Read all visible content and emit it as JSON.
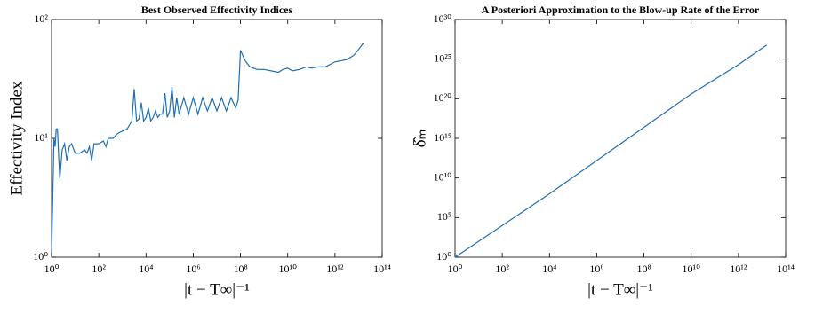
{
  "chart_data": [
    {
      "type": "line",
      "title": "Best Observed Effectivity Indices",
      "x_label": "|t − T∞|⁻¹",
      "y_label": "Effectivity Index",
      "log_x": true,
      "log_y": true,
      "xlim": [
        1,
        100000000000000.0
      ],
      "ylim": [
        1,
        100
      ],
      "xticks": [
        {
          "value": 1,
          "label": "10⁰"
        },
        {
          "value": 100,
          "label": "10²"
        },
        {
          "value": 10000,
          "label": "10⁴"
        },
        {
          "value": 1000000,
          "label": "10⁶"
        },
        {
          "value": 100000000,
          "label": "10⁸"
        },
        {
          "value": 10000000000,
          "label": "10¹⁰"
        },
        {
          "value": 1000000000000,
          "label": "10¹²"
        },
        {
          "value": 100000000000000,
          "label": "10¹⁴"
        }
      ],
      "yticks": [
        {
          "value": 1,
          "label": "10⁰"
        },
        {
          "value": 10,
          "label": "10¹"
        },
        {
          "value": 100,
          "label": "10²"
        }
      ],
      "series": [
        {
          "color": "#1f6fb4",
          "x": [
            1,
            1.12,
            1.26,
            1.41,
            1.58,
            1.78,
            2,
            2.24,
            2.82,
            3.55,
            4.47,
            5.62,
            7.08,
            10,
            15.8,
            25,
            31.6,
            40,
            50,
            63,
            100,
            158,
            200,
            251,
            398,
            631,
            1000,
            1585,
            2512,
            3162,
            3981,
            5012,
            6310,
            7943,
            10000,
            12589,
            15849,
            19953,
            25119,
            31623,
            39811,
            50119,
            63096,
            79433,
            100000,
            125893,
            158489,
            199526,
            251189,
            398107,
            630957,
            1000000,
            1580000,
            2510000,
            3980000,
            6310000,
            10000000,
            15800000,
            25100000,
            39800000,
            63100000,
            79400000,
            100000000,
            158000000,
            251000000,
            501000000,
            1000000000,
            2000000000,
            3980000000,
            6310000000,
            10000000000,
            15800000000,
            31600000000,
            63100000000,
            100000000000,
            200000000000,
            398000000000,
            1000000000000,
            3160000000000,
            6310000000000,
            10000000000000,
            15800000000000
          ],
          "values": [
            1.1,
            3,
            10,
            8.5,
            12,
            12,
            7,
            4.6,
            8,
            9,
            6.5,
            8.5,
            9,
            7.5,
            7.5,
            8,
            7.5,
            8.5,
            6.5,
            9,
            9,
            9.5,
            8.5,
            10,
            10,
            11,
            11.5,
            12,
            14,
            26,
            14,
            14.5,
            20,
            14,
            15,
            18,
            14,
            15,
            17,
            15,
            16,
            16,
            24,
            15,
            17,
            27,
            15,
            22,
            16,
            22,
            16,
            22,
            16,
            22,
            17,
            22,
            17,
            22,
            17,
            22,
            18,
            21,
            55,
            45,
            40,
            38,
            38,
            37,
            36,
            38,
            39,
            37,
            38,
            40,
            39,
            40,
            40,
            44,
            46,
            50,
            56,
            63
          ]
        }
      ]
    },
    {
      "type": "line",
      "title": "A Posteriori Approximation to the Blow-up Rate of the Error",
      "x_label": "|t − T∞|⁻¹",
      "y_label": "δ̂ₘ",
      "log_x": true,
      "log_y": true,
      "xlim": [
        1,
        100000000000000.0
      ],
      "ylim": [
        1,
        1e+30
      ],
      "xticks": [
        {
          "value": 1,
          "label": "10⁰"
        },
        {
          "value": 100,
          "label": "10²"
        },
        {
          "value": 10000,
          "label": "10⁴"
        },
        {
          "value": 1000000,
          "label": "10⁶"
        },
        {
          "value": 100000000,
          "label": "10⁸"
        },
        {
          "value": 10000000000,
          "label": "10¹⁰"
        },
        {
          "value": 1000000000000,
          "label": "10¹²"
        },
        {
          "value": 100000000000000,
          "label": "10¹⁴"
        }
      ],
      "yticks": [
        {
          "value": 1,
          "label": "10⁰"
        },
        {
          "value": 100000,
          "label": "10⁵"
        },
        {
          "value": 10000000000.0,
          "label": "10¹⁰"
        },
        {
          "value": 1000000000000000.0,
          "label": "10¹⁵"
        },
        {
          "value": 1e+20,
          "label": "10²⁰"
        },
        {
          "value": 1e+25,
          "label": "10²⁵"
        },
        {
          "value": 1e+30,
          "label": "10³⁰"
        }
      ],
      "series": [
        {
          "color": "#1f6fb4",
          "x": [
            1,
            100,
            10000,
            1000000,
            100000000,
            10000000000,
            1000000000000,
            15800000000000
          ],
          "values": [
            1,
            10000,
            100000000.0,
            1600000000000.0,
            2.5e+16,
            4e+20,
            2e+24,
            6e+26
          ]
        }
      ]
    }
  ]
}
